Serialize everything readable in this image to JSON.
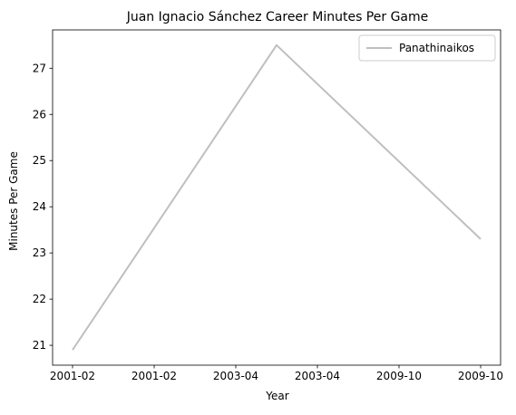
{
  "chart_data": {
    "type": "line",
    "title": "Juan Ignacio Sánchez Career Minutes Per Game",
    "xlabel": "Year",
    "ylabel": "Minutes Per Game",
    "x_tick_labels": [
      "2001-02",
      "2001-02",
      "2003-04",
      "2003-04",
      "2009-10",
      "2009-10"
    ],
    "x": [
      "2001-02",
      "2003-04",
      "2009-10"
    ],
    "series": [
      {
        "name": "Panathinaikos",
        "color": "#bfbfbf",
        "values": [
          20.9,
          27.5,
          23.3
        ]
      }
    ],
    "y_ticks": [
      21,
      22,
      23,
      24,
      25,
      26,
      27
    ],
    "ylim": [
      20.57,
      27.83
    ],
    "grid": false,
    "legend_position": "top-right"
  }
}
